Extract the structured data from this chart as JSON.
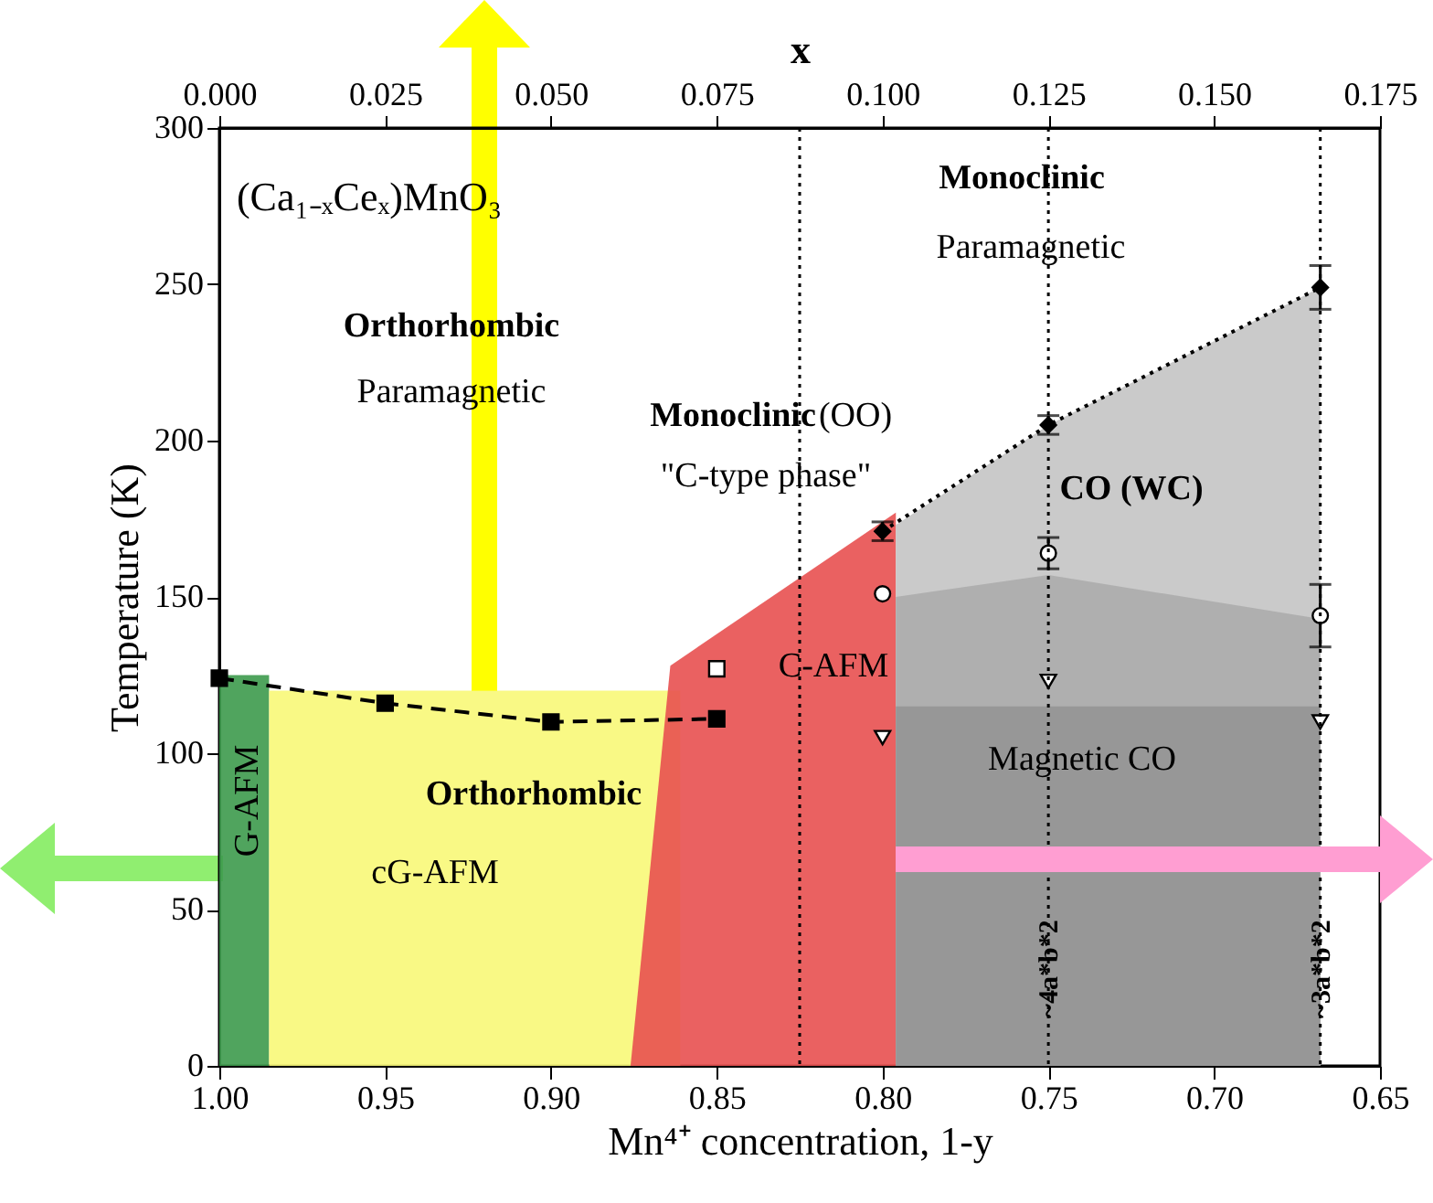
{
  "chart_data": {
    "type": "line",
    "xlabel": "Mn⁴⁺ concentration, 1-y",
    "ylabel": "Temperature (K)",
    "x2label": "x",
    "xlim": [
      1.0,
      0.65
    ],
    "xticks": [
      {
        "value": 1.0,
        "label": "1.00"
      },
      {
        "value": 0.95,
        "label": "0.95"
      },
      {
        "value": 0.9,
        "label": "0.90"
      },
      {
        "value": 0.85,
        "label": "0.85"
      },
      {
        "value": 0.8,
        "label": "0.80"
      },
      {
        "value": 0.75,
        "label": "0.75"
      },
      {
        "value": 0.7,
        "label": "0.70"
      },
      {
        "value": 0.65,
        "label": "0.65"
      }
    ],
    "x2lim": [
      0.0,
      0.175
    ],
    "x2ticks": [
      {
        "value": 0,
        "label": "0.000"
      },
      {
        "value": 0.025,
        "label": "0.025"
      },
      {
        "value": 0.05,
        "label": "0.050"
      },
      {
        "value": 0.075,
        "label": "0.075"
      },
      {
        "value": 0.1,
        "label": "0.100"
      },
      {
        "value": 0.125,
        "label": "0.125"
      },
      {
        "value": 0.15,
        "label": "0.150"
      },
      {
        "value": 0.175,
        "label": "0.175"
      }
    ],
    "ylim": [
      0,
      300
    ],
    "yticks": [
      0,
      50,
      100,
      150,
      200,
      250,
      300
    ],
    "series": [
      {
        "type": "area",
        "color": "#3d9a4c",
        "x": [
          1.0,
          0.985
        ],
        "values": [
          125,
          125
        ]
      },
      {
        "type": "area",
        "color": "#f8f878",
        "x": [
          0.985,
          0.861
        ],
        "values": [
          120,
          120
        ]
      },
      {
        "type": "area",
        "color": "#e85050",
        "x": [
          0.876,
          0.864,
          0.796
        ],
        "values": [
          0,
          128,
          177
        ]
      },
      {
        "type": "area",
        "color": "#c4c4c4",
        "x": [
          0.796,
          0.75,
          0.668
        ],
        "values": [
          173,
          205,
          249
        ]
      },
      {
        "type": "area",
        "color": "#acacac",
        "x": [
          0.796,
          0.75,
          0.668
        ],
        "values": [
          150,
          157,
          143
        ]
      },
      {
        "type": "area",
        "color": "#959595",
        "x": [
          0.796,
          0.668
        ],
        "values": [
          115,
          115
        ]
      },
      {
        "type": "line",
        "color": "#000000",
        "marker": "square",
        "line_style": "dashed",
        "x": [
          1.0,
          0.95,
          0.9,
          0.85
        ],
        "values": [
          124,
          116,
          110,
          111
        ]
      },
      {
        "type": "line",
        "color": "#000000",
        "marker": "diamond",
        "line_style": "dotted",
        "x": [
          0.8,
          0.75,
          0.668
        ],
        "values": [
          171,
          205,
          249
        ],
        "errors": [
          3,
          3,
          7
        ]
      },
      {
        "type": "scatter",
        "color": "#ffffff",
        "marker": "square",
        "x": [
          0.85
        ],
        "values": [
          127
        ]
      },
      {
        "type": "scatter",
        "color": "#ffffff",
        "marker": "circle",
        "x": [
          0.8,
          0.75,
          0.668
        ],
        "values": [
          151,
          164,
          144
        ],
        "errors": [
          null,
          5,
          10
        ]
      },
      {
        "type": "scatter",
        "color": "#ffffff",
        "marker": "triangle",
        "x": [
          0.8,
          0.75,
          0.668
        ],
        "values": [
          105,
          123,
          110
        ]
      }
    ],
    "ref_lines": [
      {
        "axis": "x",
        "value": 0.825,
        "line_style": "dotted"
      },
      {
        "axis": "x",
        "value": 0.75,
        "label": "~4a*b*2",
        "line_style": "dotted"
      },
      {
        "axis": "x",
        "value": 0.668,
        "label": "~3a*b*2",
        "line_style": "dotted"
      }
    ],
    "annotations": [
      "(Ca₁₋ₓCeₓ)MnO₃",
      "Orthorhombic",
      "Paramagnetic",
      "Monoclinic",
      "Paramagnetic",
      "Monoclinic",
      "(OO)",
      "\"C-type phase\"",
      "CO (WC)",
      "C-AFM",
      "Magnetic CO",
      "Orthorhombic",
      "cG-AFM",
      "G-AFM"
    ]
  }
}
